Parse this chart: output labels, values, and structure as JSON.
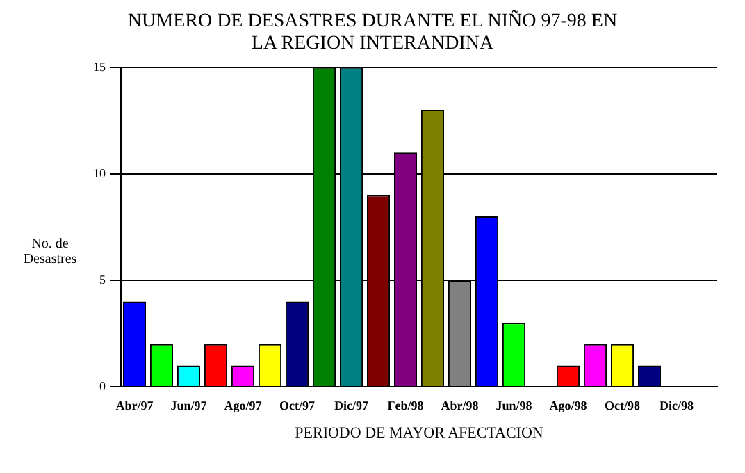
{
  "chart_data": {
    "type": "bar",
    "title": "NUMERO DE DESASTRES DURANTE EL NIÑO 97-98 EN LA REGION INTERANDINA",
    "xlabel": "PERIODO DE MAYOR AFECTACION",
    "ylabel": "No. de Desastres",
    "categories": [
      "Abr/97",
      null,
      "Jun/97",
      null,
      "Ago/97",
      null,
      "Oct/97",
      null,
      "Dic/97",
      null,
      "Feb/98",
      null,
      "Abr/98",
      null,
      "Jun/98",
      null,
      "Ago/98",
      null,
      "Oct/98",
      null,
      "Dic/98",
      null
    ],
    "values": [
      4,
      2,
      1,
      2,
      1,
      2,
      4,
      15,
      15,
      9,
      11,
      13,
      5,
      8,
      3,
      0,
      1,
      2,
      2,
      1,
      0,
      0
    ],
    "colors": [
      "#0000ff",
      "#00ff00",
      "#00ffff",
      "#ff0000",
      "#ff00ff",
      "#ffff00",
      "#000080",
      "#008000",
      "#008080",
      "#800000",
      "#800080",
      "#808000",
      "#808080",
      "#0000ff",
      "#00ff00",
      "#008080",
      "#ff0000",
      "#ff00ff",
      "#ffff00",
      "#000080",
      "#008000",
      "#008080"
    ],
    "ylim": [
      0,
      15
    ],
    "yticks": [
      0,
      5,
      10,
      15
    ],
    "grid": "y",
    "legend": false
  }
}
